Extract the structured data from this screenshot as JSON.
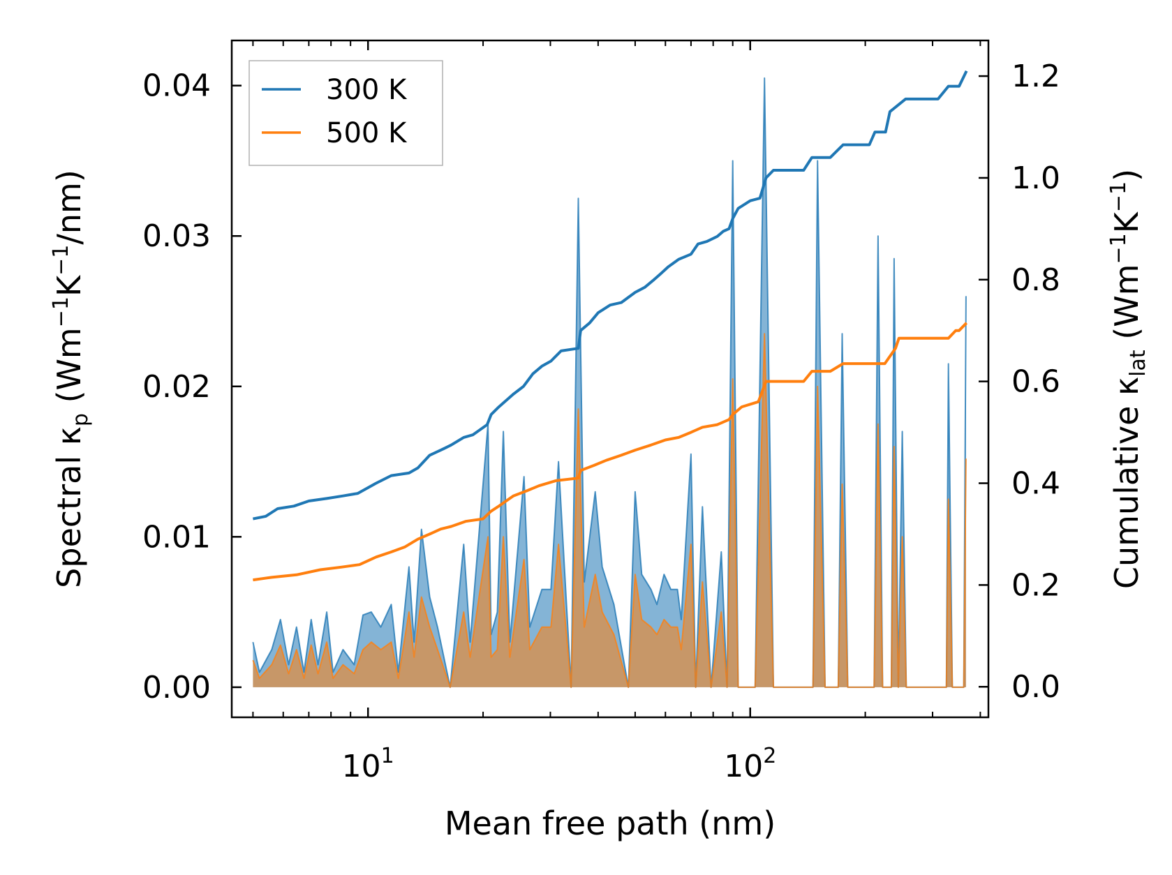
{
  "chart_data": {
    "type": "line",
    "xscale": "log",
    "xlim": [
      4.4,
      420
    ],
    "x_ticks": [
      {
        "value": 10,
        "label": "10",
        "exp": "1"
      },
      {
        "value": 100,
        "label": "10",
        "exp": "2"
      }
    ],
    "xlabel": "Mean free path (nm)",
    "left_axis": {
      "label": "Spectral κ",
      "sub": "p",
      "units_open": " (Wm",
      "sup1": "−1",
      "units_mid": "K",
      "sup2": "−1",
      "units_close": "/nm)",
      "ylim": [
        -0.002,
        0.043
      ],
      "ticks": [
        0.0,
        0.01,
        0.02,
        0.03,
        0.04
      ],
      "tick_labels": [
        "0.00",
        "0.01",
        "0.02",
        "0.03",
        "0.04"
      ]
    },
    "right_axis": {
      "label": "Cumulative κ",
      "sub": "lat",
      "units_open": " (Wm",
      "sup1": "−1",
      "units_mid": "K",
      "sup2": "−1",
      "units_close": ")",
      "ylim": [
        -0.06,
        1.27
      ],
      "ticks": [
        0.0,
        0.2,
        0.4,
        0.6,
        0.8,
        1.0,
        1.2
      ],
      "tick_labels": [
        "0.0",
        "0.2",
        "0.4",
        "0.6",
        "0.8",
        "1.0",
        "1.2"
      ]
    },
    "legend": {
      "position": "top-left",
      "entries": [
        "300 K",
        "500 K"
      ]
    },
    "series": [
      {
        "name": "300 K",
        "color": "#1f77b4",
        "fill": "#1f77b4",
        "spectral": [
          [
            5,
            0.003
          ],
          [
            5.2,
            0.001
          ],
          [
            5.6,
            0.0025
          ],
          [
            5.9,
            0.0045
          ],
          [
            6.2,
            0.0015
          ],
          [
            6.5,
            0.004
          ],
          [
            6.8,
            0.001
          ],
          [
            7.1,
            0.0045
          ],
          [
            7.4,
            0.0015
          ],
          [
            7.8,
            0.005
          ],
          [
            8.1,
            0.001
          ],
          [
            8.6,
            0.0025
          ],
          [
            9.2,
            0.0015
          ],
          [
            9.7,
            0.0048
          ],
          [
            10.2,
            0.005
          ],
          [
            10.8,
            0.004
          ],
          [
            11.5,
            0.0055
          ],
          [
            12.0,
            0.001
          ],
          [
            12.8,
            0.008
          ],
          [
            13.2,
            0.003
          ],
          [
            13.8,
            0.0105
          ],
          [
            14.5,
            0.006
          ],
          [
            15.2,
            0.004
          ],
          [
            16.4,
            0.0
          ],
          [
            17.8,
            0.0095
          ],
          [
            18.5,
            0.003
          ],
          [
            20.6,
            0.0175
          ],
          [
            21.0,
            0.0035
          ],
          [
            21.8,
            0.005
          ],
          [
            22.6,
            0.017
          ],
          [
            23.5,
            0.003
          ],
          [
            25.6,
            0.014
          ],
          [
            26.5,
            0.004
          ],
          [
            28.5,
            0.0065
          ],
          [
            30.1,
            0.0065
          ],
          [
            31.5,
            0.015
          ],
          [
            34.0,
            0.0
          ],
          [
            35.5,
            0.0325
          ],
          [
            36.8,
            0.007
          ],
          [
            39.3,
            0.013
          ],
          [
            41.0,
            0.008
          ],
          [
            44.0,
            0.0055
          ],
          [
            48.0,
            0.0
          ],
          [
            50.0,
            0.013
          ],
          [
            52.0,
            0.0075
          ],
          [
            55.0,
            0.0065
          ],
          [
            57.0,
            0.0055
          ],
          [
            59.5,
            0.0075
          ],
          [
            62.0,
            0.0065
          ],
          [
            64.5,
            0.0065
          ],
          [
            66.0,
            0.0045
          ],
          [
            70.0,
            0.0155
          ],
          [
            72.0,
            0.0
          ],
          [
            75.0,
            0.012
          ],
          [
            79.0,
            0.0
          ],
          [
            84.0,
            0.009
          ],
          [
            87.0,
            0.0
          ],
          [
            90.0,
            0.035
          ],
          [
            93.0,
            0.0
          ],
          [
            103.0,
            0.0
          ],
          [
            109.0,
            0.0405
          ],
          [
            115.0,
            0.0
          ],
          [
            146.0,
            0.0
          ],
          [
            150.0,
            0.035
          ],
          [
            157.0,
            0.0
          ],
          [
            170.0,
            0.0
          ],
          [
            174.0,
            0.0235
          ],
          [
            180.0,
            0.0
          ],
          [
            211.0,
            0.0
          ],
          [
            216.0,
            0.03
          ],
          [
            222.0,
            0.0
          ],
          [
            234.0,
            0.0
          ],
          [
            238.0,
            0.0285
          ],
          [
            244.0,
            0.0
          ],
          [
            250.0,
            0.017
          ],
          [
            256.0,
            0.0
          ],
          [
            326.0,
            0.0
          ],
          [
            330.0,
            0.0215
          ],
          [
            338.0,
            0.0
          ],
          [
            362.0,
            0.0
          ],
          [
            367.0,
            0.026
          ]
        ],
        "cumulative": [
          [
            5,
            0.33
          ],
          [
            5.4,
            0.335
          ],
          [
            5.8,
            0.35
          ],
          [
            6.4,
            0.355
          ],
          [
            7.0,
            0.365
          ],
          [
            7.8,
            0.37
          ],
          [
            8.6,
            0.375
          ],
          [
            9.4,
            0.38
          ],
          [
            10.5,
            0.4
          ],
          [
            11.5,
            0.415
          ],
          [
            12.8,
            0.42
          ],
          [
            13.5,
            0.43
          ],
          [
            14.5,
            0.455
          ],
          [
            15.5,
            0.465
          ],
          [
            16.5,
            0.475
          ],
          [
            17.8,
            0.49
          ],
          [
            18.8,
            0.495
          ],
          [
            20.5,
            0.515
          ],
          [
            21.0,
            0.535
          ],
          [
            22.0,
            0.55
          ],
          [
            24.0,
            0.575
          ],
          [
            25.5,
            0.59
          ],
          [
            27.0,
            0.615
          ],
          [
            28.5,
            0.63
          ],
          [
            30.1,
            0.64
          ],
          [
            32.0,
            0.66
          ],
          [
            35.5,
            0.665
          ],
          [
            36.0,
            0.7
          ],
          [
            38.0,
            0.715
          ],
          [
            40.0,
            0.735
          ],
          [
            43.0,
            0.75
          ],
          [
            46.0,
            0.755
          ],
          [
            50.0,
            0.775
          ],
          [
            53.0,
            0.785
          ],
          [
            56.0,
            0.8
          ],
          [
            58.0,
            0.81
          ],
          [
            61.0,
            0.825
          ],
          [
            65.0,
            0.84
          ],
          [
            70.0,
            0.85
          ],
          [
            73.0,
            0.87
          ],
          [
            77.0,
            0.875
          ],
          [
            82.0,
            0.885
          ],
          [
            85.0,
            0.895
          ],
          [
            88.0,
            0.9
          ],
          [
            90.0,
            0.92
          ],
          [
            93.0,
            0.94
          ],
          [
            100.0,
            0.955
          ],
          [
            106.0,
            0.96
          ],
          [
            110.0,
            1.0
          ],
          [
            115.0,
            1.015
          ],
          [
            138.0,
            1.015
          ],
          [
            145.0,
            1.04
          ],
          [
            162.0,
            1.04
          ],
          [
            175.0,
            1.065
          ],
          [
            205.0,
            1.065
          ],
          [
            212.0,
            1.09
          ],
          [
            226.0,
            1.09
          ],
          [
            232.0,
            1.13
          ],
          [
            255.0,
            1.155
          ],
          [
            310.0,
            1.155
          ],
          [
            330.0,
            1.18
          ],
          [
            352.0,
            1.18
          ],
          [
            368.0,
            1.21
          ]
        ]
      },
      {
        "name": "500 K",
        "color": "#ff7f0e",
        "fill": "#ff7f0e",
        "spectral": [
          [
            5,
            0.0018
          ],
          [
            5.2,
            0.0006
          ],
          [
            5.6,
            0.0015
          ],
          [
            5.9,
            0.0028
          ],
          [
            6.2,
            0.0009
          ],
          [
            6.5,
            0.0025
          ],
          [
            6.8,
            0.0006
          ],
          [
            7.1,
            0.0028
          ],
          [
            7.4,
            0.0009
          ],
          [
            7.8,
            0.003
          ],
          [
            8.1,
            0.0006
          ],
          [
            8.6,
            0.0015
          ],
          [
            9.2,
            0.0009
          ],
          [
            9.7,
            0.0025
          ],
          [
            10.2,
            0.003
          ],
          [
            10.8,
            0.0025
          ],
          [
            11.5,
            0.003
          ],
          [
            12.0,
            0.0006
          ],
          [
            12.8,
            0.005
          ],
          [
            13.2,
            0.002
          ],
          [
            13.8,
            0.006
          ],
          [
            14.5,
            0.004
          ],
          [
            15.2,
            0.0025
          ],
          [
            16.4,
            0.0
          ],
          [
            17.8,
            0.005
          ],
          [
            18.5,
            0.002
          ],
          [
            20.6,
            0.01
          ],
          [
            21.0,
            0.002
          ],
          [
            21.8,
            0.0025
          ],
          [
            22.6,
            0.01
          ],
          [
            23.5,
            0.002
          ],
          [
            25.6,
            0.0085
          ],
          [
            26.5,
            0.0025
          ],
          [
            28.5,
            0.004
          ],
          [
            30.1,
            0.004
          ],
          [
            31.5,
            0.0095
          ],
          [
            34.0,
            0.0
          ],
          [
            35.5,
            0.0185
          ],
          [
            36.8,
            0.004
          ],
          [
            39.3,
            0.0075
          ],
          [
            41.0,
            0.005
          ],
          [
            44.0,
            0.0035
          ],
          [
            48.0,
            0.0
          ],
          [
            50.0,
            0.0075
          ],
          [
            52.0,
            0.0045
          ],
          [
            55.0,
            0.004
          ],
          [
            57.0,
            0.0035
          ],
          [
            59.5,
            0.0045
          ],
          [
            62.0,
            0.004
          ],
          [
            64.5,
            0.004
          ],
          [
            66.0,
            0.0025
          ],
          [
            70.0,
            0.0095
          ],
          [
            72.0,
            0.0
          ],
          [
            75.0,
            0.007
          ],
          [
            79.0,
            0.0
          ],
          [
            84.0,
            0.005
          ],
          [
            87.0,
            0.0
          ],
          [
            90.0,
            0.0205
          ],
          [
            93.0,
            0.0
          ],
          [
            103.0,
            0.0
          ],
          [
            109.0,
            0.0235
          ],
          [
            115.0,
            0.0
          ],
          [
            146.0,
            0.0
          ],
          [
            150.0,
            0.02
          ],
          [
            157.0,
            0.0
          ],
          [
            170.0,
            0.0
          ],
          [
            174.0,
            0.0135
          ],
          [
            180.0,
            0.0
          ],
          [
            211.0,
            0.0
          ],
          [
            216.0,
            0.0175
          ],
          [
            222.0,
            0.0
          ],
          [
            234.0,
            0.0
          ],
          [
            238.0,
            0.016
          ],
          [
            244.0,
            0.0
          ],
          [
            250.0,
            0.01
          ],
          [
            256.0,
            0.0
          ],
          [
            326.0,
            0.0
          ],
          [
            330.0,
            0.0125
          ],
          [
            338.0,
            0.0
          ],
          [
            362.0,
            0.0
          ],
          [
            367.0,
            0.0152
          ]
        ],
        "cumulative": [
          [
            5,
            0.21
          ],
          [
            5.6,
            0.215
          ],
          [
            6.5,
            0.22
          ],
          [
            7.5,
            0.23
          ],
          [
            8.5,
            0.235
          ],
          [
            9.5,
            0.24
          ],
          [
            10.5,
            0.255
          ],
          [
            11.5,
            0.265
          ],
          [
            12.5,
            0.275
          ],
          [
            13.5,
            0.29
          ],
          [
            14.5,
            0.3
          ],
          [
            15.5,
            0.31
          ],
          [
            16.5,
            0.315
          ],
          [
            18.0,
            0.325
          ],
          [
            20.0,
            0.33
          ],
          [
            21.0,
            0.345
          ],
          [
            22.0,
            0.355
          ],
          [
            24.0,
            0.375
          ],
          [
            26.0,
            0.385
          ],
          [
            28.0,
            0.395
          ],
          [
            31.0,
            0.405
          ],
          [
            35.5,
            0.41
          ],
          [
            36.0,
            0.425
          ],
          [
            39.0,
            0.435
          ],
          [
            42.0,
            0.445
          ],
          [
            46.0,
            0.455
          ],
          [
            50.0,
            0.465
          ],
          [
            55.0,
            0.475
          ],
          [
            60.0,
            0.485
          ],
          [
            65.0,
            0.49
          ],
          [
            70.0,
            0.5
          ],
          [
            75.0,
            0.51
          ],
          [
            82.0,
            0.515
          ],
          [
            88.0,
            0.525
          ],
          [
            90.0,
            0.535
          ],
          [
            95.0,
            0.55
          ],
          [
            105.0,
            0.56
          ],
          [
            110.0,
            0.6
          ],
          [
            138.0,
            0.6
          ],
          [
            145.0,
            0.62
          ],
          [
            162.0,
            0.62
          ],
          [
            175.0,
            0.635
          ],
          [
            225.0,
            0.635
          ],
          [
            240.0,
            0.665
          ],
          [
            245.0,
            0.685
          ],
          [
            330.0,
            0.685
          ],
          [
            345.0,
            0.7
          ],
          [
            352.0,
            0.7
          ],
          [
            368.0,
            0.715
          ]
        ]
      }
    ]
  }
}
